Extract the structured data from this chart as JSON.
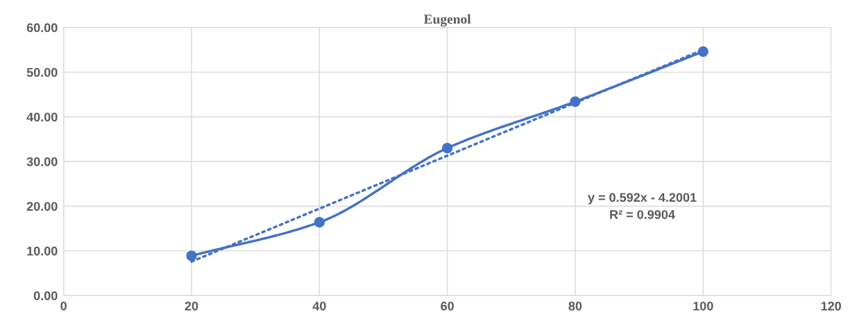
{
  "chart_data": {
    "type": "line",
    "title": "Eugenol",
    "x": [
      20,
      40,
      60,
      80,
      100
    ],
    "series": [
      {
        "color": "#4472c4",
        "values": [
          8.9,
          16.4,
          33.0,
          43.4,
          54.6
        ],
        "marker": "circle",
        "line_style": "solid"
      },
      {
        "type": "line",
        "x": [
          20,
          100
        ],
        "values": [
          7.6,
          55.0
        ],
        "color": "#4472c4",
        "marker": "none",
        "line_style": "dotted"
      }
    ],
    "xlim": [
      0,
      120
    ],
    "xticks": [
      0,
      20,
      40,
      60,
      80,
      100,
      120
    ],
    "ylim": [
      0,
      60
    ],
    "yticks": [
      {
        "value": 0,
        "label": "0.00"
      },
      {
        "value": 10,
        "label": "10.00"
      },
      {
        "value": 20,
        "label": "20.00"
      },
      {
        "value": 30,
        "label": "30.00"
      },
      {
        "value": 40,
        "label": "40.00"
      },
      {
        "value": 50,
        "label": "50.00"
      },
      {
        "value": 60,
        "label": "60.00"
      }
    ],
    "grid": true,
    "legend": false,
    "annotations": [
      "y = 0.592x - 4.2001\nR² = 0.9904"
    ]
  }
}
